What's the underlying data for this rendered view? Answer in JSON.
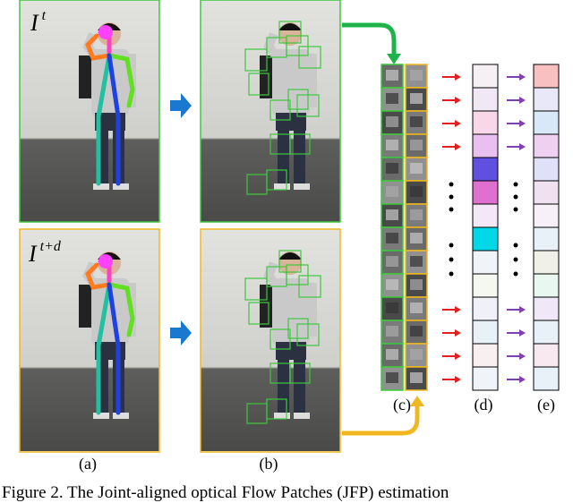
{
  "frames": {
    "top": {
      "base": "I",
      "sup": "t"
    },
    "bottom": {
      "base": "I",
      "sup": "t+d"
    }
  },
  "labels": {
    "a": "(a)",
    "b": "(b)",
    "c": "(c)",
    "d": "(d)",
    "e": "(e)"
  },
  "caption": "Figure 2. The Joint-aligned optical Flow Patches (JFP) estimation"
}
